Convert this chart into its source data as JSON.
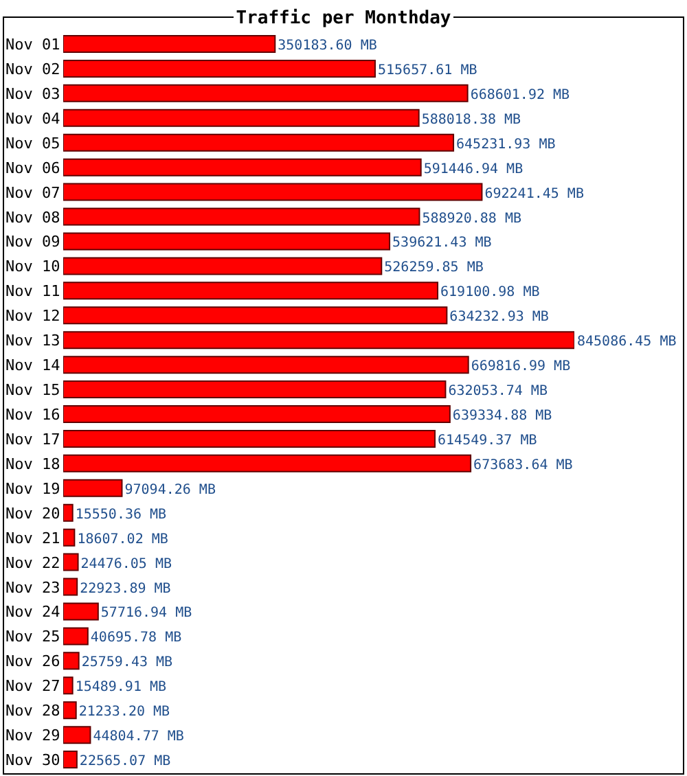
{
  "chart_data": {
    "type": "bar",
    "orientation": "horizontal",
    "title": "Traffic per Monthday",
    "categories": [
      "Nov 01",
      "Nov 02",
      "Nov 03",
      "Nov 04",
      "Nov 05",
      "Nov 06",
      "Nov 07",
      "Nov 08",
      "Nov 09",
      "Nov 10",
      "Nov 11",
      "Nov 12",
      "Nov 13",
      "Nov 14",
      "Nov 15",
      "Nov 16",
      "Nov 17",
      "Nov 18",
      "Nov 19",
      "Nov 20",
      "Nov 21",
      "Nov 22",
      "Nov 23",
      "Nov 24",
      "Nov 25",
      "Nov 26",
      "Nov 27",
      "Nov 28",
      "Nov 29",
      "Nov 30"
    ],
    "values": [
      350183.6,
      515657.61,
      668601.92,
      588018.38,
      645231.93,
      591446.94,
      692241.45,
      588920.88,
      539621.43,
      526259.85,
      619100.98,
      634232.93,
      845086.45,
      669816.99,
      632053.74,
      639334.88,
      614549.37,
      673683.64,
      97094.26,
      15550.36,
      18607.02,
      24476.05,
      22923.89,
      57716.94,
      40695.78,
      25759.43,
      15489.91,
      21233.2,
      44804.77,
      22565.07
    ],
    "value_labels": [
      "350183.60 MB",
      "515657.61 MB",
      "668601.92 MB",
      "588018.38 MB",
      "645231.93 MB",
      "591446.94 MB",
      "692241.45 MB",
      "588920.88 MB",
      "539621.43 MB",
      "526259.85 MB",
      "619100.98 MB",
      "634232.93 MB",
      "845086.45 MB",
      "669816.99 MB",
      "632053.74 MB",
      "639334.88 MB",
      "614549.37 MB",
      "673683.64 MB",
      "97094.26 MB",
      "15550.36 MB",
      "18607.02 MB",
      "24476.05 MB",
      "22923.89 MB",
      "57716.94 MB",
      "40695.78 MB",
      "25759.43 MB",
      "15489.91 MB",
      "21233.20 MB",
      "44804.77 MB",
      "22565.07 MB"
    ],
    "color": "#ff0000",
    "grid": false,
    "legend": false
  }
}
